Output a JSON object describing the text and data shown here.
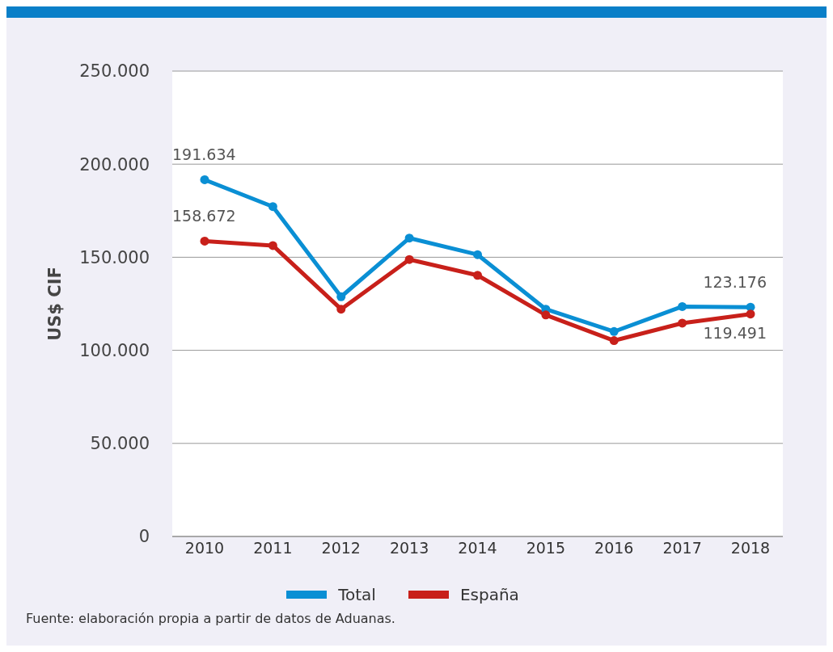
{
  "chart_data": {
    "type": "line",
    "ylabel": "US$ CIF",
    "categories": [
      "2010",
      "2011",
      "2012",
      "2013",
      "2014",
      "2015",
      "2016",
      "2017",
      "2018"
    ],
    "series": [
      {
        "name": "Total",
        "color": "#0a8fd4",
        "values": [
          191634,
          177200,
          128800,
          160300,
          151400,
          122100,
          110100,
          123500,
          123176
        ],
        "value_labels": [
          "191.634",
          null,
          null,
          null,
          null,
          null,
          null,
          null,
          "123.176"
        ]
      },
      {
        "name": "España",
        "color": "#c8201a",
        "values": [
          158672,
          156300,
          122100,
          148800,
          140300,
          119000,
          105200,
          114600,
          119491
        ],
        "value_labels": [
          "158.672",
          null,
          null,
          null,
          null,
          null,
          null,
          null,
          "119.491"
        ]
      }
    ],
    "ylim": [
      0,
      250000
    ],
    "yticks": [
      {
        "value": 0,
        "label": "0"
      },
      {
        "value": 50000,
        "label": "50.000"
      },
      {
        "value": 100000,
        "label": "100.000"
      },
      {
        "value": 150000,
        "label": "150.000"
      },
      {
        "value": 200000,
        "label": "200.000"
      },
      {
        "value": 250000,
        "label": "250.000"
      }
    ],
    "grid": "y",
    "legend": "bottom",
    "marker": "circle",
    "line_style": "solid",
    "annotations": [
      "Fuente: elaboración propia a partir de datos de Aduanas."
    ]
  }
}
